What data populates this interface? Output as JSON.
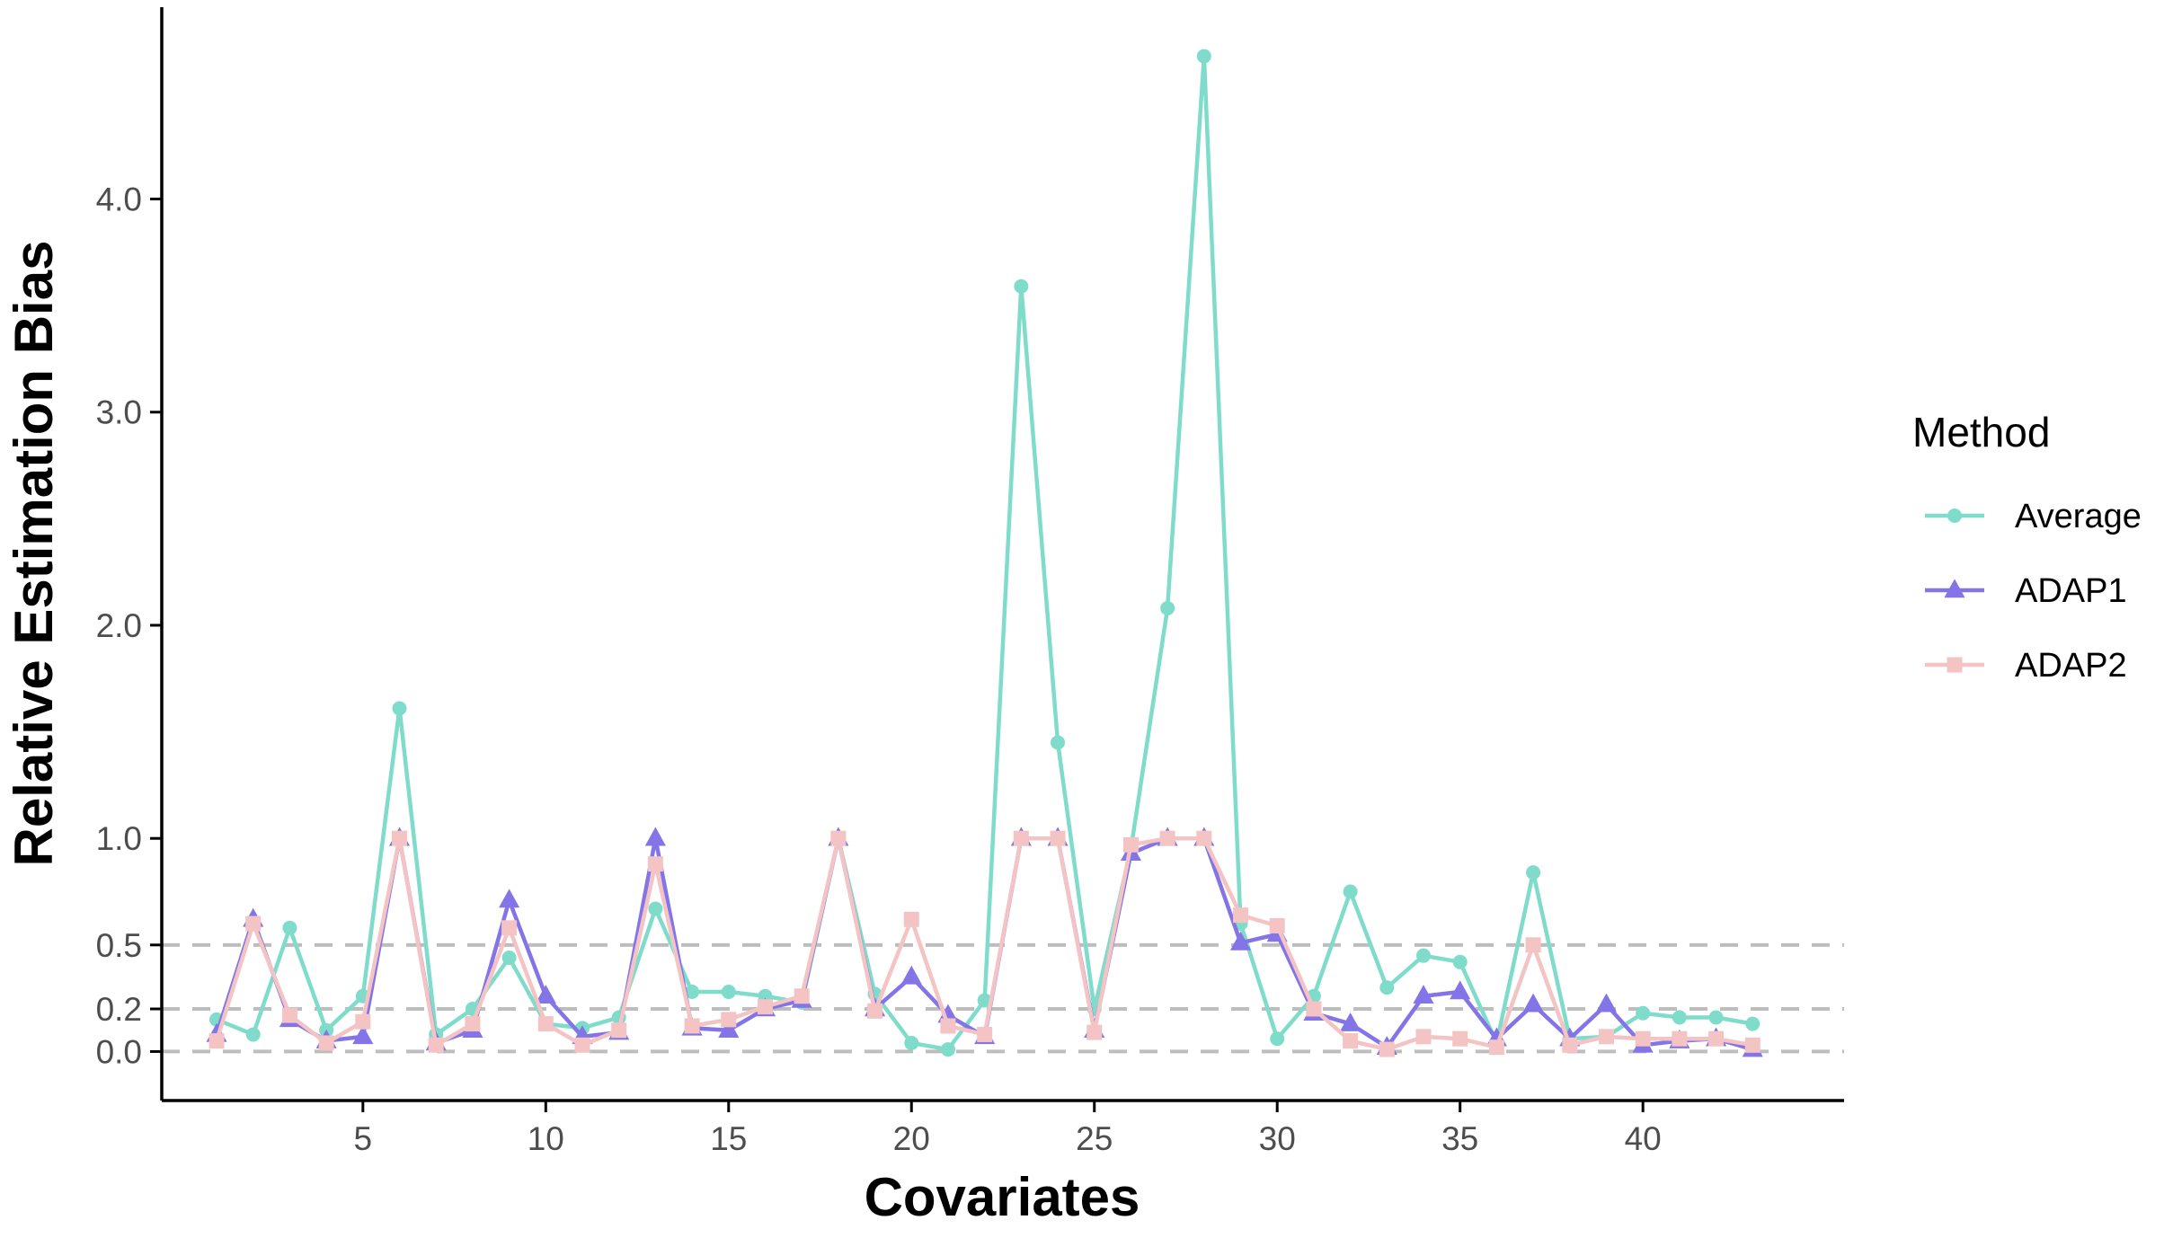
{
  "chart_data": {
    "type": "line",
    "xlabel": "Covariates",
    "ylabel": "Relative Estimation Bias",
    "x": [
      1,
      2,
      3,
      4,
      5,
      6,
      7,
      8,
      9,
      10,
      11,
      12,
      13,
      14,
      15,
      16,
      17,
      18,
      19,
      20,
      21,
      22,
      23,
      24,
      25,
      26,
      27,
      28,
      29,
      30,
      31,
      32,
      33,
      34,
      35,
      36,
      37,
      38,
      39,
      40,
      41,
      42,
      43
    ],
    "xlim": [
      -0.5,
      45.5
    ],
    "ylim": [
      -0.23,
      4.9
    ],
    "x_ticks": [
      5,
      10,
      15,
      20,
      25,
      30,
      35,
      40
    ],
    "x_tick_labels": [
      "5",
      "10",
      "15",
      "20",
      "25",
      "30",
      "35",
      "40"
    ],
    "y_ticks": [
      0.0,
      0.2,
      0.5,
      1.0,
      2.0,
      3.0,
      4.0
    ],
    "y_tick_labels": [
      "0.0",
      "0.2",
      "0.5",
      "1.0",
      "2.0",
      "3.0",
      "4.0"
    ],
    "reference_lines": [
      0.0,
      0.2,
      0.5
    ],
    "grid": false,
    "legend": {
      "title": "Method",
      "position": "right"
    },
    "series": [
      {
        "name": "Average",
        "color": "#7fdccb",
        "marker": "circle",
        "values": [
          0.15,
          0.08,
          0.58,
          0.1,
          0.26,
          1.61,
          0.08,
          0.2,
          0.44,
          0.13,
          0.11,
          0.16,
          0.67,
          0.28,
          0.28,
          0.26,
          0.23,
          1.0,
          0.27,
          0.04,
          0.01,
          0.24,
          3.59,
          1.45,
          0.2,
          0.95,
          2.08,
          4.67,
          0.6,
          0.06,
          0.26,
          0.75,
          0.3,
          0.45,
          0.42,
          0.04,
          0.84,
          0.06,
          0.07,
          0.18,
          0.16,
          0.16,
          0.13
        ]
      },
      {
        "name": "ADAP1",
        "color": "#8374e8",
        "marker": "triangle",
        "values": [
          0.08,
          0.62,
          0.15,
          0.05,
          0.07,
          1.0,
          0.04,
          0.1,
          0.71,
          0.26,
          0.07,
          0.09,
          1.0,
          0.11,
          0.1,
          0.2,
          0.24,
          1.0,
          0.2,
          0.35,
          0.17,
          0.07,
          1.0,
          1.0,
          0.1,
          0.93,
          1.0,
          1.0,
          0.51,
          0.55,
          0.18,
          0.13,
          0.02,
          0.26,
          0.28,
          0.06,
          0.22,
          0.06,
          0.22,
          0.03,
          0.05,
          0.06,
          0.01
        ]
      },
      {
        "name": "ADAP2",
        "color": "#f4c3c3",
        "marker": "square",
        "values": [
          0.05,
          0.6,
          0.17,
          0.04,
          0.14,
          1.0,
          0.03,
          0.13,
          0.58,
          0.13,
          0.03,
          0.1,
          0.88,
          0.12,
          0.15,
          0.21,
          0.26,
          1.0,
          0.19,
          0.62,
          0.12,
          0.08,
          1.0,
          1.0,
          0.09,
          0.97,
          1.0,
          1.0,
          0.64,
          0.59,
          0.2,
          0.05,
          0.01,
          0.07,
          0.06,
          0.02,
          0.5,
          0.03,
          0.07,
          0.06,
          0.06,
          0.06,
          0.03
        ]
      }
    ]
  }
}
